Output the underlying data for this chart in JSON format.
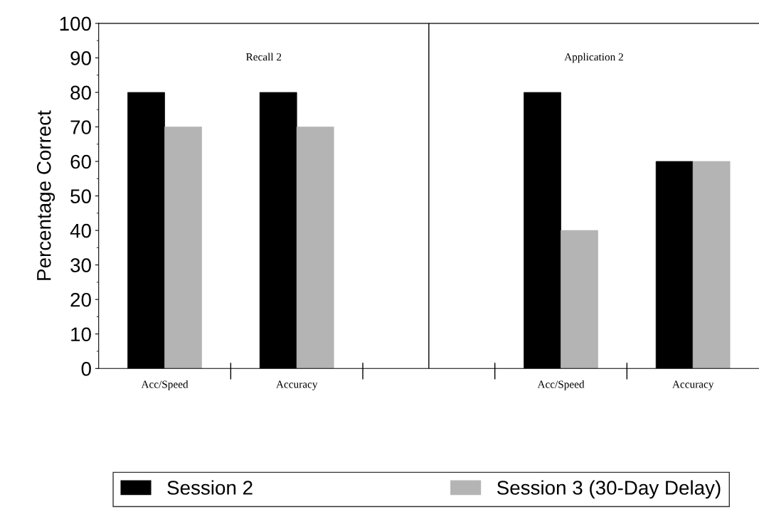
{
  "chart_data": {
    "type": "bar",
    "ylabel": "Percentage Correct",
    "categories": [
      "Acc/Speed",
      "Accuracy",
      null,
      "Acc/Speed",
      "Accuracy"
    ],
    "series": [
      {
        "name": "Session 2",
        "color": "#000000",
        "values": [
          80,
          80,
          null,
          80,
          60
        ]
      },
      {
        "name": "Session 3 (30-Day Delay)",
        "color": "#b4b4b4",
        "values": [
          70,
          70,
          null,
          40,
          60
        ]
      }
    ],
    "ylim": [
      0,
      100
    ],
    "yticks": [
      0,
      10,
      20,
      30,
      40,
      50,
      60,
      70,
      80,
      90,
      100
    ],
    "annotations": [
      "Recall 2",
      "Application 2"
    ],
    "legend": "bottom"
  }
}
